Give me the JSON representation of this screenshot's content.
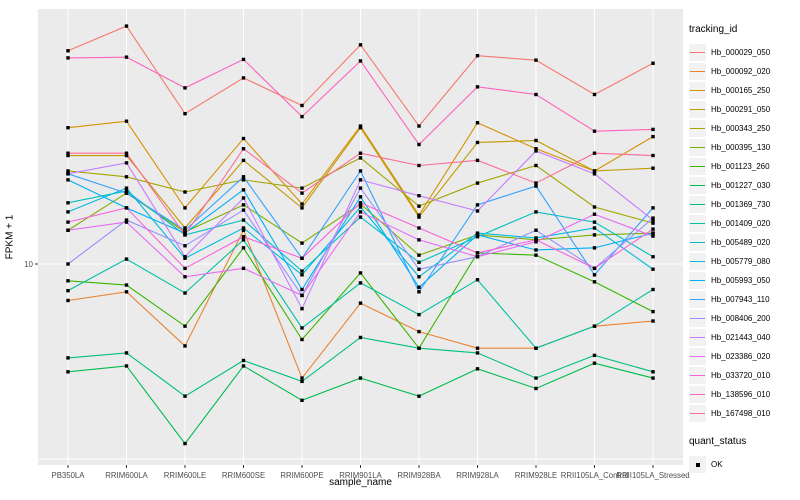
{
  "figure": {
    "background": "#FFFFFF",
    "panel_background": "#EBEBEB",
    "gridline_color": "#FFFFFF",
    "tick_color": "#333333",
    "tick_label_color": "#4D4D4D"
  },
  "y_axis": {
    "title": "FPKM + 1",
    "tick_label": "10",
    "scale": "log10"
  },
  "x_axis": {
    "title": "sample_name"
  },
  "legend": {
    "tracking_title": "tracking_id",
    "quant_title": "quant_status",
    "quant_items": [
      {
        "label": "OK",
        "marker": "black-square"
      }
    ]
  },
  "chart_data": {
    "type": "line",
    "title": "",
    "xlabel": "sample_name",
    "ylabel": "FPKM + 1",
    "yscale": "log10",
    "ylim": [
      1.05,
      210
    ],
    "ytick_labels": [
      "10"
    ],
    "grid": "white on gray panel, vertical line per category",
    "legend_position": "right",
    "point_marker": "small black square (quant_status = OK)",
    "x_categories": [
      "PB350LA",
      "RRIM600LA",
      "RRIM600LE",
      "RRIM600SE",
      "RRIM600PE",
      "RRIM901LA",
      "RRIM928BA",
      "RRIM928LA",
      "RRIM928LE",
      "RRII105LA_Control",
      "RRII105LA_Stressed"
    ],
    "series": [
      {
        "name": "Hb_000029_050",
        "color": "#F8766D",
        "values": [
          124,
          166,
          59,
          90,
          65,
          133,
          51,
          117,
          111,
          74,
          107
        ]
      },
      {
        "name": "Hb_000092_020",
        "color": "#EA8331",
        "values": [
          6.5,
          7.2,
          3.8,
          14.9,
          2.6,
          6.3,
          4.5,
          3.7,
          3.7,
          4.8,
          5.1
        ]
      },
      {
        "name": "Hb_000165_250",
        "color": "#D89000",
        "values": [
          50,
          54,
          19.4,
          44,
          20.3,
          51,
          17.8,
          53,
          39,
          30,
          45
        ]
      },
      {
        "name": "Hb_000291_050",
        "color": "#C09B00",
        "values": [
          36,
          36,
          15.3,
          34,
          19.4,
          50,
          17.4,
          42,
          43,
          30,
          31
        ]
      },
      {
        "name": "Hb_000343_250",
        "color": "#A3A500",
        "values": [
          30,
          28,
          23.4,
          27,
          24.5,
          35,
          19.8,
          26,
          32,
          19.6,
          16.2
        ]
      },
      {
        "name": "Hb_000395_130",
        "color": "#7CAE00",
        "values": [
          14.9,
          23.1,
          14.6,
          20.1,
          12.8,
          20.3,
          11.1,
          14.1,
          13.3,
          14.1,
          14.4
        ]
      },
      {
        "name": "Hb_001123_260",
        "color": "#39B600",
        "values": [
          8.2,
          7.8,
          4.8,
          12.1,
          4.1,
          9.0,
          3.7,
          11.4,
          11.1,
          8.1,
          5.7
        ]
      },
      {
        "name": "Hb_001227_030",
        "color": "#00BB4E",
        "values": [
          2.8,
          3.0,
          1.2,
          3.0,
          2.0,
          2.6,
          2.1,
          2.9,
          2.3,
          3.1,
          2.6
        ]
      },
      {
        "name": "Hb_001369_730",
        "color": "#00BF7D",
        "values": [
          3.3,
          3.5,
          2.1,
          3.2,
          2.5,
          4.2,
          3.7,
          3.5,
          2.6,
          3.4,
          2.8
        ]
      },
      {
        "name": "Hb_001409_020",
        "color": "#00C1A3",
        "values": [
          7.3,
          10.6,
          7.1,
          13.3,
          4.7,
          8.0,
          5.5,
          8.3,
          3.7,
          4.8,
          7.4
        ]
      },
      {
        "name": "Hb_005489_020",
        "color": "#00BFC4",
        "values": [
          20.6,
          23.7,
          14.1,
          16.8,
          9.2,
          17.4,
          10.2,
          13.8,
          18.5,
          16.4,
          10.9
        ]
      },
      {
        "name": "Hb_005779_080",
        "color": "#00BAE0",
        "values": [
          18.5,
          24.5,
          10.7,
          15.3,
          8.8,
          19.6,
          8.6,
          14.4,
          13.6,
          15.3,
          9.4
        ]
      },
      {
        "name": "Hb_005993_050",
        "color": "#00B0F6",
        "values": [
          27,
          19.4,
          14.4,
          24,
          7.4,
          22.1,
          7.6,
          14.1,
          11.8,
          12.1,
          14.4
        ]
      },
      {
        "name": "Hb_007943_110",
        "color": "#35A2FF",
        "values": [
          29,
          23.1,
          14.9,
          28,
          10.7,
          30,
          7.2,
          20.1,
          25.1,
          8.8,
          19.4
        ]
      },
      {
        "name": "Hb_008406_200",
        "color": "#9590FF",
        "values": [
          10,
          16.8,
          12.4,
          18.9,
          6.9,
          24.5,
          9.4,
          10.9,
          14.9,
          9.5,
          17.2
        ]
      },
      {
        "name": "Hb_021443_040",
        "color": "#C77CFF",
        "values": [
          29,
          33,
          10.9,
          21.8,
          5.9,
          27,
          22.4,
          18.7,
          38,
          29,
          16.8
        ]
      },
      {
        "name": "Hb_023386_020",
        "color": "#E76BF3",
        "values": [
          14.9,
          16.4,
          8.6,
          9.5,
          6.9,
          18.5,
          13.3,
          10.9,
          13.0,
          18.0,
          13.9
        ]
      },
      {
        "name": "Hb_033720_010",
        "color": "#FA62DB",
        "values": [
          16.4,
          19.4,
          9.5,
          13.8,
          10.7,
          20.6,
          15.3,
          11.4,
          13.3,
          9.5,
          15.1
        ]
      },
      {
        "name": "Hb_138596_010",
        "color": "#FF62BC",
        "values": [
          114,
          115,
          80,
          112,
          57,
          110,
          41,
          81,
          74,
          48,
          49
        ]
      },
      {
        "name": "Hb_167498_010",
        "color": "#FF6A98",
        "values": [
          37,
          37,
          14.1,
          39,
          23.1,
          37,
          32,
          34,
          26,
          37,
          36
        ]
      }
    ]
  }
}
